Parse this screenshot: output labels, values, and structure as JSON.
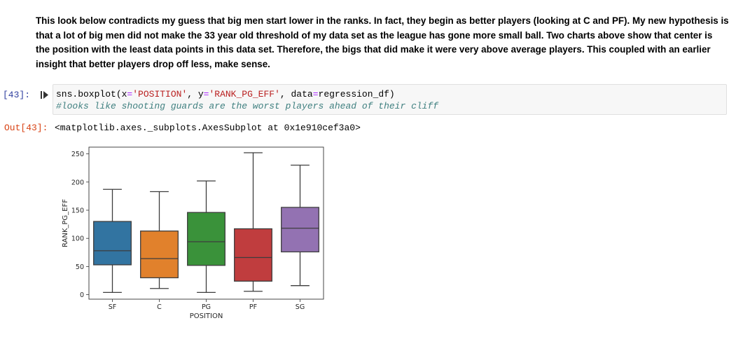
{
  "markdown": {
    "text": "This look below contradicts my guess that big men start lower in the ranks. In fact, they begin as better players (looking at C and PF). My new hypothesis is that a lot of big men did not make the 33 year old threshold of my data set as the league has gone more small ball. Two charts above show that center is the position with the least data points in this data set. Therefore, the bigs that did make it were very above average players. This coupled with an earlier insight that better players drop off less, make sense."
  },
  "input_cell": {
    "prompt": "[43]:",
    "code_line1": {
      "p1": "sns.boxplot(x",
      "op1": "=",
      "s1": "'POSITION'",
      "p2": ", y",
      "op2": "=",
      "s2": "'RANK_PG_EFF'",
      "p3": ", data",
      "op3": "=",
      "p4": "regression_df)"
    },
    "code_line2": "#looks like shooting guards are the worst players ahead of their cliff"
  },
  "output_cell": {
    "prompt": "Out[43]:",
    "text": "<matplotlib.axes._subplots.AxesSubplot at 0x1e910cef3a0>"
  },
  "chart_data": {
    "type": "box",
    "title": "",
    "xlabel": "POSITION",
    "ylabel": "RANK_PG_EFF",
    "ylim": [
      -8,
      262
    ],
    "yticks": [
      0,
      50,
      100,
      150,
      200,
      250
    ],
    "grid": false,
    "categories": [
      "SF",
      "C",
      "PG",
      "PF",
      "SG"
    ],
    "boxes": [
      {
        "name": "SF",
        "whisker_low": 4,
        "q1": 53,
        "median": 78,
        "q3": 130,
        "whisker_high": 187,
        "color": "#3274a1"
      },
      {
        "name": "C",
        "whisker_low": 11,
        "q1": 30,
        "median": 64,
        "q3": 113,
        "whisker_high": 183,
        "color": "#e1812c"
      },
      {
        "name": "PG",
        "whisker_low": 4,
        "q1": 52,
        "median": 94,
        "q3": 146,
        "whisker_high": 202,
        "color": "#3a923a"
      },
      {
        "name": "PF",
        "whisker_low": 6,
        "q1": 24,
        "median": 66,
        "q3": 117,
        "whisker_high": 252,
        "color": "#c03d3e"
      },
      {
        "name": "SG",
        "whisker_low": 16,
        "q1": 76,
        "median": 118,
        "q3": 155,
        "whisker_high": 230,
        "color": "#9372b2"
      }
    ]
  }
}
